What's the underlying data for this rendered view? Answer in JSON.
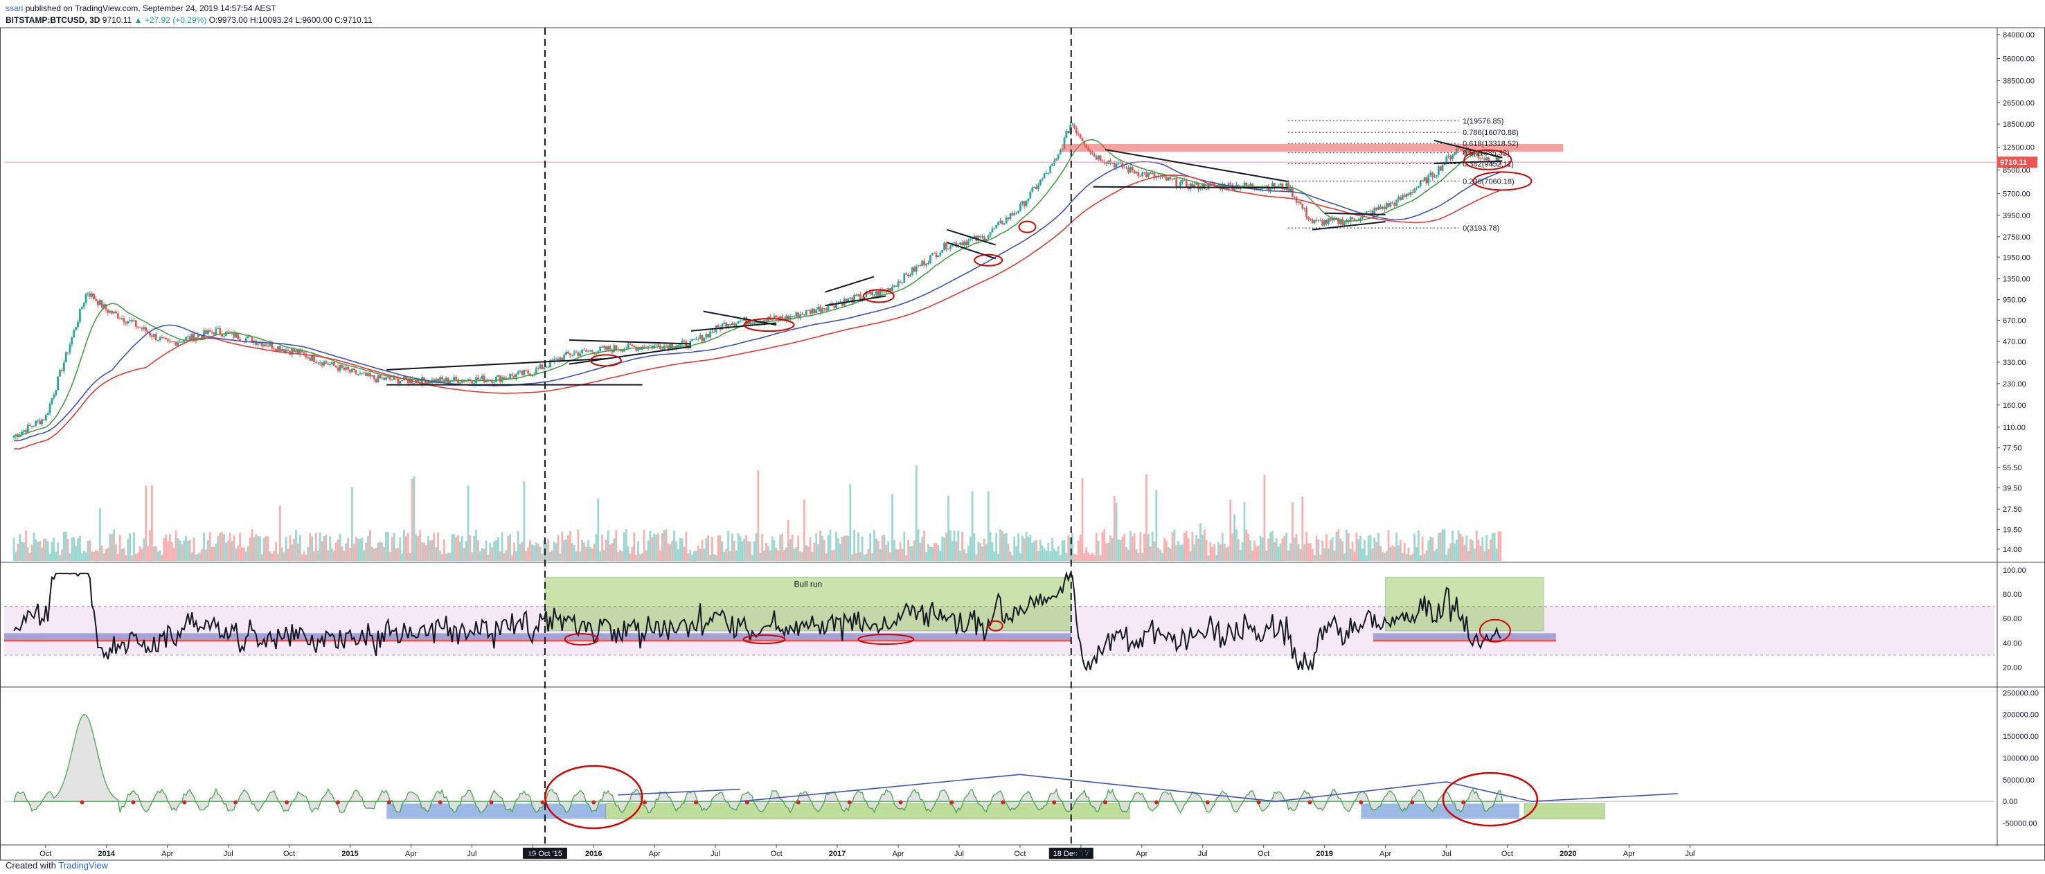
{
  "header": {
    "user": "ssari",
    "published_text": "published on TradingView.com, September 24, 2019 14:57:54 AEST",
    "symbol": "BITSTAMP:BTCUSD, 3D",
    "last": "9710.11",
    "change": "▲ +27.92 (+0.29%)",
    "ohlc": "O:9973.00 H:10093.24 L:9600.00 C:9710.11"
  },
  "footer": {
    "created_with": "Created with",
    "brand": "TradingView"
  },
  "colors": {
    "up": "#26a69a",
    "down": "#ef5350",
    "ma_fast": "#43a047",
    "ma_mid": "#3f51b5",
    "ma_slow": "#e53935",
    "bull_zone": "#8bc34a",
    "band": "#e1bee7",
    "annot": "#d50000",
    "price_line": "#f48fb1"
  },
  "chart_data": [
    {
      "type": "line",
      "panel": "price",
      "title": "",
      "yscale": "log",
      "y_ticks": [
        "84000.00",
        "56000.00",
        "38500.00",
        "26500.00",
        "18500.00",
        "12500.00",
        "8500.00",
        "5700.00",
        "3950.00",
        "2750.00",
        "1950.00",
        "1350.00",
        "950.00",
        "670.00",
        "470.00",
        "330.00",
        "230.00",
        "160.00",
        "110.00",
        "77.50",
        "55.50",
        "39.50",
        "27.50",
        "19.50",
        "14.00"
      ],
      "last_price_label": "9710.11",
      "x_ticks": [
        "Oct",
        "2014",
        "Apr",
        "Jul",
        "Oct",
        "2015",
        "Apr",
        "Jul",
        "Oct",
        "2016",
        "Apr",
        "Jul",
        "Oct",
        "2017",
        "Apr",
        "Jul",
        "Oct",
        "2018",
        "Apr",
        "Jul",
        "Oct",
        "2019",
        "Apr",
        "Jul",
        "Oct",
        "2020",
        "Apr",
        "Jul"
      ],
      "x_markers": [
        "19 Oct '15",
        "18 Dec '17"
      ],
      "series": [
        {
          "values_note": "price",
          "x": [
            2013.6,
            2013.75,
            2013.85,
            2013.92,
            2014.0,
            2014.1,
            2014.25,
            2014.45,
            2014.6,
            2014.8,
            2015.0,
            2015.1,
            2015.3,
            2015.6,
            2015.75,
            2015.9,
            2016.1,
            2016.4,
            2016.55,
            2016.8,
            2017.0,
            2017.2,
            2017.45,
            2017.6,
            2017.75,
            2017.9,
            2017.96,
            2018.05,
            2018.2,
            2018.45,
            2018.7,
            2018.85,
            2018.95,
            2019.1,
            2019.3,
            2019.45,
            2019.55,
            2019.65,
            2019.73
          ],
          "y": [
            90,
            130,
            450,
            1100,
            800,
            650,
            450,
            560,
            480,
            380,
            280,
            250,
            240,
            250,
            280,
            380,
            420,
            450,
            650,
            700,
            900,
            1100,
            2400,
            2700,
            4500,
            10000,
            19000,
            11000,
            8500,
            6500,
            6500,
            6400,
            3500,
            3600,
            5000,
            8000,
            12500,
            10500,
            9710
          ]
        },
        {
          "name": "",
          "values_note": "MA fast",
          "x": [
            2013.6,
            2013.9,
            2014.2,
            2014.6,
            2015.0,
            2015.5,
            2016.0,
            2016.5,
            2017.0,
            2017.5,
            2017.96,
            2018.2,
            2018.6,
            2018.9,
            2019.2,
            2019.5,
            2019.73
          ],
          "y": [
            85,
            600,
            800,
            520,
            340,
            250,
            400,
            600,
            850,
            1800,
            12000,
            9000,
            6800,
            5200,
            4200,
            8500,
            10000
          ]
        }
      ],
      "annotations": [
        {
          "label": "1(19576.85)",
          "value": 19576.85
        },
        {
          "label": "0.786(16070.88)",
          "value": 16070.88
        },
        {
          "label": "0.618(13318.52)",
          "value": 13318.52
        },
        {
          "label": "0.5(11385.32)",
          "value": 11385.32
        },
        {
          "label": "0.382(9452.11)",
          "value": 9452.11
        },
        {
          "label": "0.236(7060.18)",
          "value": 7060.18
        },
        {
          "label": "0(3193.78)",
          "value": 3193.78
        }
      ]
    },
    {
      "type": "line",
      "panel": "rsi",
      "y_ticks": [
        "100.00",
        "80.00",
        "60.00",
        "40.00",
        "20.00"
      ],
      "bands": [
        30,
        70
      ],
      "zones": [
        {
          "label": "Bull run",
          "x0": 2015.8,
          "x1": 2017.96,
          "y0": 50,
          "y1": 94
        },
        {
          "label": "",
          "x0": 2019.25,
          "x1": 2019.9,
          "y0": 50,
          "y1": 94
        }
      ]
    },
    {
      "type": "area",
      "panel": "oscillator",
      "y_ticks": [
        "250000.00",
        "200000.00",
        "150000.00",
        "100000.00",
        "50000.00",
        "0.00",
        "-50000.00"
      ]
    }
  ]
}
